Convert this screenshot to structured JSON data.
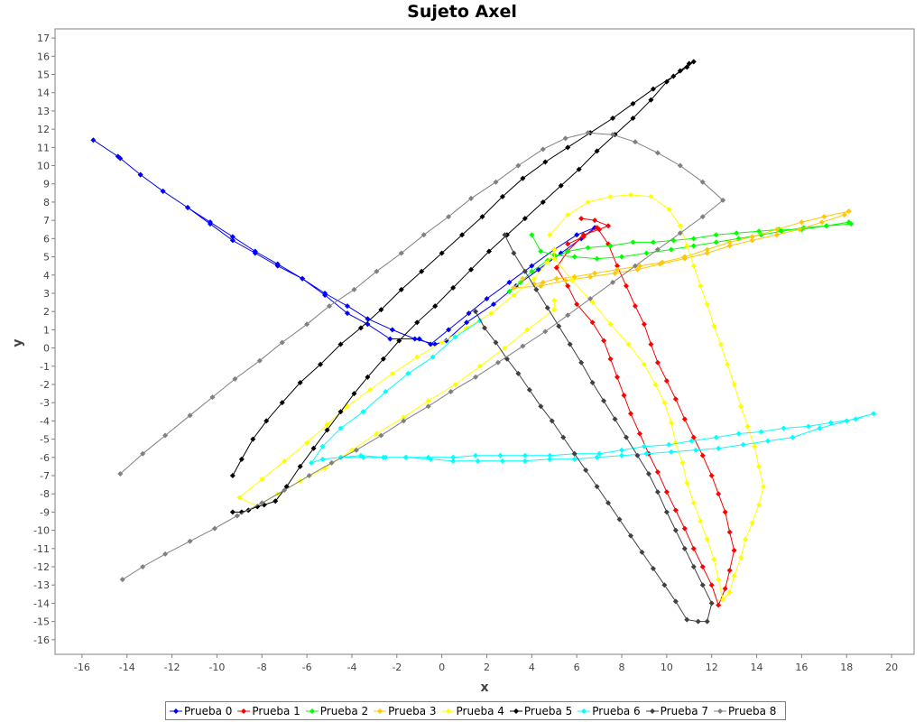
{
  "chart_data": {
    "type": "scatter",
    "title": "Sujeto Axel",
    "xlabel": "x",
    "ylabel": "y",
    "xlim": [
      -17.2,
      21
    ],
    "ylim": [
      -16.8,
      17.5
    ],
    "x_ticks": [
      -16,
      -14,
      -12,
      -10,
      -8,
      -6,
      -4,
      -2,
      0,
      2,
      4,
      6,
      8,
      10,
      12,
      14,
      16,
      18,
      20
    ],
    "y_ticks": [
      -16,
      -15,
      -14,
      -13,
      -12,
      -11,
      -10,
      -9,
      -8,
      -7,
      -6,
      -5,
      -4,
      -3,
      -2,
      -1,
      0,
      1,
      2,
      3,
      4,
      5,
      6,
      7,
      8,
      9,
      10,
      11,
      12,
      13,
      14,
      15,
      16,
      17
    ],
    "grid": false,
    "legend_position": "bottom",
    "series": [
      {
        "name": "Prueba 0",
        "color": "#0000ff",
        "x": [
          -15.5,
          -14.4,
          -13.4,
          -12.4,
          -11.3,
          -10.3,
          -9.3,
          -8.3,
          -7.3,
          -6.2,
          -5.2,
          -4.2,
          -3.3,
          -2.2,
          -1.2,
          -0.3,
          0.2,
          1.1,
          2.3,
          3.3,
          4.3,
          5.3,
          6.2,
          6.8,
          6.0,
          5.0,
          4.0,
          3.0,
          2.0,
          1.2,
          0.3,
          -0.5,
          -1.0,
          -2.3,
          -3.3,
          -4.2,
          -5.2,
          -6.2,
          -7.3,
          -8.3,
          -9.3,
          -10.3,
          -11.3,
          -12.4,
          -13.4,
          -14.3
        ],
        "y": [
          11.4,
          10.5,
          9.5,
          8.6,
          7.7,
          6.8,
          5.9,
          5.2,
          4.5,
          3.8,
          3.0,
          2.3,
          1.6,
          1.0,
          0.5,
          0.2,
          0.4,
          1.4,
          2.4,
          3.4,
          4.3,
          5.2,
          6.0,
          6.6,
          6.2,
          5.4,
          4.5,
          3.6,
          2.7,
          1.9,
          1.0,
          0.2,
          0.5,
          0.5,
          1.3,
          1.9,
          2.9,
          3.8,
          4.6,
          5.3,
          6.1,
          6.9,
          7.7,
          8.6,
          9.5,
          10.4
        ]
      },
      {
        "name": "Prueba 1",
        "color": "#ff0000",
        "x": [
          5.6,
          6.3,
          6.9,
          7.4,
          7.8,
          8.2,
          8.6,
          9.0,
          9.3,
          9.6,
          10.0,
          10.4,
          10.8,
          11.2,
          11.6,
          12.0,
          12.3,
          12.6,
          12.8,
          13.0,
          12.8,
          12.6,
          12.3,
          12.0,
          11.6,
          11.2,
          10.8,
          10.4,
          10.0,
          9.6,
          9.2,
          8.8,
          8.4,
          8.1,
          7.8,
          7.5,
          7.2,
          6.7,
          6.0,
          5.6,
          5.1,
          5.6,
          6.3,
          7.0,
          7.4,
          6.8,
          6.2
        ],
        "y": [
          5.7,
          6.1,
          6.6,
          5.7,
          4.5,
          3.4,
          2.3,
          1.3,
          0.2,
          -0.8,
          -1.8,
          -2.8,
          -3.9,
          -4.9,
          -5.9,
          -7.0,
          -8.0,
          -9.0,
          -10.1,
          -11.1,
          -12.2,
          -13.2,
          -14.1,
          -13.0,
          -12.0,
          -11.0,
          -9.9,
          -8.9,
          -7.9,
          -6.8,
          -5.8,
          -4.7,
          -3.6,
          -2.6,
          -1.6,
          -0.6,
          0.4,
          1.4,
          2.4,
          3.4,
          4.4,
          5.3,
          6.2,
          6.5,
          6.7,
          7.0,
          7.1
        ]
      },
      {
        "name": "Prueba 2",
        "color": "#00ff00",
        "x": [
          3.0,
          3.5,
          4.0,
          4.7,
          5.6,
          6.5,
          7.5,
          8.5,
          9.4,
          10.3,
          11.2,
          12.2,
          13.1,
          14.1,
          15.0,
          16.0,
          17.1,
          18.1,
          18.2,
          17.1,
          16.1,
          15.1,
          14.2,
          13.2,
          12.2,
          11.2,
          10.2,
          9.1,
          8.0,
          6.9,
          5.9,
          5.0,
          4.4,
          4.0
        ],
        "y": [
          3.1,
          3.6,
          4.2,
          4.8,
          5.3,
          5.5,
          5.6,
          5.8,
          5.8,
          5.9,
          6.0,
          6.2,
          6.3,
          6.4,
          6.5,
          6.5,
          6.7,
          6.9,
          6.8,
          6.7,
          6.6,
          6.4,
          6.2,
          6.0,
          5.8,
          5.6,
          5.4,
          5.2,
          5.0,
          4.9,
          5.0,
          5.1,
          5.3,
          6.2
        ]
      },
      {
        "name": "Prueba 3",
        "color": "#ffc800",
        "x": [
          3.6,
          3.2,
          4.4,
          5.5,
          6.6,
          7.7,
          8.7,
          9.7,
          10.8,
          11.8,
          12.8,
          13.8,
          14.9,
          15.9,
          16.9,
          17.9,
          18.1,
          17.0,
          16.0,
          14.9,
          13.8,
          12.8,
          11.8,
          10.8,
          9.8,
          8.8,
          7.8,
          6.8,
          5.9,
          5.1,
          4.5,
          4.1
        ],
        "y": [
          3.8,
          3.3,
          3.4,
          3.7,
          3.9,
          4.1,
          4.3,
          4.6,
          4.9,
          5.2,
          5.6,
          5.9,
          6.2,
          6.5,
          6.9,
          7.3,
          7.5,
          7.2,
          6.9,
          6.5,
          6.1,
          5.8,
          5.4,
          5.0,
          4.7,
          4.5,
          4.3,
          4.1,
          3.9,
          3.8,
          3.6,
          3.5
        ]
      },
      {
        "name": "Prueba 4",
        "color": "#ffff00",
        "x": [
          4.8,
          5.6,
          6.5,
          7.5,
          8.4,
          9.3,
          10.1,
          10.6,
          10.9,
          11.2,
          11.5,
          11.8,
          12.1,
          12.4,
          12.7,
          13.0,
          13.3,
          13.6,
          13.9,
          14.1,
          14.3,
          14.1,
          13.8,
          13.5,
          13.3,
          13.0,
          12.8,
          12.5,
          12.3,
          12.1,
          11.8,
          11.5,
          11.2,
          10.9,
          10.7,
          10.4,
          10.2,
          9.9,
          9.5,
          9.0,
          8.3,
          7.5,
          6.7,
          5.8,
          5.0,
          5.0,
          4.7,
          4.1,
          3.2,
          2.2,
          1.1,
          0.0,
          -1.1,
          -2.2,
          -3.2,
          -4.2,
          -5.1,
          -6.0,
          -7.0,
          -8.0,
          -9.0,
          -8.2,
          -7.3,
          -6.3,
          -5.2,
          -4.0,
          -2.9,
          -1.7,
          -0.6,
          0.6,
          1.7,
          2.8,
          3.8,
          5.0,
          5.0
        ],
        "y": [
          6.2,
          7.3,
          8.0,
          8.3,
          8.4,
          8.3,
          7.6,
          6.7,
          5.6,
          4.5,
          3.4,
          2.4,
          1.2,
          0.2,
          -0.9,
          -2.0,
          -3.2,
          -4.3,
          -5.4,
          -6.5,
          -7.6,
          -8.6,
          -9.6,
          -10.5,
          -11.5,
          -12.5,
          -13.4,
          -13.8,
          -12.7,
          -11.6,
          -10.5,
          -9.5,
          -8.5,
          -7.4,
          -6.3,
          -5.2,
          -4.1,
          -3.0,
          -2.0,
          -0.9,
          0.2,
          1.3,
          2.5,
          3.7,
          4.9,
          5.4,
          4.7,
          3.8,
          2.9,
          1.9,
          1.1,
          0.3,
          -0.5,
          -1.4,
          -2.3,
          -3.2,
          -4.2,
          -5.2,
          -6.2,
          -7.2,
          -8.2,
          -8.7,
          -8.0,
          -7.3,
          -6.6,
          -5.6,
          -4.7,
          -3.8,
          -2.9,
          -2.0,
          -1.0,
          0.0,
          1.0,
          2.1,
          2.6
        ]
      },
      {
        "name": "Prueba 5",
        "color": "#000000",
        "x": [
          -9.3,
          -8.9,
          -8.6,
          -8.2,
          -7.9,
          -7.4,
          -6.9,
          -6.3,
          -5.7,
          -5.1,
          -4.5,
          -3.9,
          -3.3,
          -2.6,
          -1.9,
          -1.1,
          -0.3,
          0.5,
          1.3,
          2.1,
          2.9,
          3.7,
          4.5,
          5.3,
          6.1,
          6.9,
          7.7,
          8.5,
          9.3,
          10.0,
          10.6,
          11.0,
          11.2,
          10.9,
          10.3,
          9.4,
          8.5,
          7.6,
          6.6,
          5.6,
          4.6,
          3.6,
          2.7,
          1.8,
          0.9,
          0.0,
          -0.9,
          -1.8,
          -2.7,
          -3.6,
          -4.5,
          -5.4,
          -6.3,
          -7.1,
          -7.8,
          -8.4,
          -8.9,
          -9.3
        ],
        "y": [
          -9.0,
          -9.0,
          -8.9,
          -8.7,
          -8.6,
          -8.4,
          -7.6,
          -6.5,
          -5.5,
          -4.5,
          -3.5,
          -2.5,
          -1.6,
          -0.6,
          0.4,
          1.4,
          2.3,
          3.3,
          4.3,
          5.3,
          6.2,
          7.1,
          8.0,
          8.9,
          9.8,
          10.8,
          11.7,
          12.6,
          13.6,
          14.6,
          15.2,
          15.6,
          15.7,
          15.4,
          14.9,
          14.2,
          13.4,
          12.6,
          11.8,
          11.0,
          10.2,
          9.3,
          8.3,
          7.2,
          6.2,
          5.2,
          4.2,
          3.2,
          2.1,
          1.1,
          0.2,
          -0.9,
          -1.9,
          -3.0,
          -4.0,
          -5.0,
          -6.1,
          -7.0
        ]
      },
      {
        "name": "Prueba 6",
        "color": "#00ffff",
        "x": [
          -4.5,
          -3.5,
          -2.5,
          -1.6,
          -0.6,
          0.5,
          1.5,
          2.6,
          3.7,
          4.8,
          5.9,
          7.0,
          8.0,
          9.0,
          10.1,
          11.1,
          12.2,
          13.2,
          14.2,
          15.2,
          16.3,
          17.3,
          18.4,
          19.2,
          18.0,
          16.8,
          15.6,
          14.5,
          13.4,
          12.3,
          11.3,
          10.2,
          9.1,
          8.0,
          6.9,
          5.9,
          4.8,
          3.7,
          2.7,
          1.6,
          0.5,
          -0.5,
          -1.6,
          -2.6,
          -3.6,
          -4.5,
          -5.3,
          -5.8,
          -5.3,
          -4.5,
          -3.5,
          -2.5,
          -1.5,
          -0.4,
          0.6,
          1.7
        ],
        "y": [
          -6.0,
          -6.0,
          -6.0,
          -6.0,
          -6.0,
          -6.0,
          -5.9,
          -5.9,
          -5.9,
          -5.9,
          -5.8,
          -5.8,
          -5.6,
          -5.4,
          -5.3,
          -5.1,
          -4.9,
          -4.7,
          -4.6,
          -4.4,
          -4.3,
          -4.1,
          -3.9,
          -3.6,
          -4.0,
          -4.4,
          -4.9,
          -5.1,
          -5.3,
          -5.5,
          -5.6,
          -5.7,
          -5.8,
          -5.9,
          -6.0,
          -6.1,
          -6.1,
          -6.2,
          -6.2,
          -6.2,
          -6.2,
          -6.1,
          -6.0,
          -6.0,
          -5.9,
          -6.0,
          -6.1,
          -6.3,
          -5.4,
          -4.4,
          -3.5,
          -2.4,
          -1.4,
          -0.5,
          0.6,
          1.5
        ]
      },
      {
        "name": "Prueba 7",
        "color": "#404040",
        "x": [
          1.5,
          1.9,
          2.4,
          2.9,
          3.4,
          3.9,
          4.4,
          4.9,
          5.4,
          5.9,
          6.4,
          6.9,
          7.4,
          7.9,
          8.4,
          8.9,
          9.4,
          9.9,
          10.4,
          10.9,
          11.4,
          11.8,
          12.0,
          11.6,
          11.2,
          10.8,
          10.4,
          10.0,
          9.6,
          9.2,
          8.7,
          8.2,
          7.7,
          7.2,
          6.7,
          6.2,
          5.7,
          5.2,
          4.7,
          4.2,
          3.7,
          3.2,
          2.8
        ],
        "y": [
          2.0,
          1.1,
          0.3,
          -0.6,
          -1.4,
          -2.3,
          -3.2,
          -4.0,
          -4.9,
          -5.8,
          -6.7,
          -7.6,
          -8.5,
          -9.4,
          -10.3,
          -11.2,
          -12.1,
          -13.0,
          -13.9,
          -14.9,
          -15.0,
          -15.0,
          -14.0,
          -13.0,
          -12.0,
          -11.0,
          -10.0,
          -9.0,
          -7.9,
          -6.9,
          -5.9,
          -4.9,
          -3.9,
          -2.9,
          -1.9,
          -0.8,
          0.2,
          1.2,
          2.2,
          3.2,
          4.2,
          5.2,
          6.2
        ]
      },
      {
        "name": "Prueba 8",
        "color": "#808080",
        "x": [
          -14.2,
          -13.3,
          -12.3,
          -11.2,
          -10.1,
          -9.1,
          -8.0,
          -7.0,
          -5.9,
          -4.9,
          -3.8,
          -2.7,
          -1.7,
          -0.6,
          0.4,
          1.5,
          2.5,
          3.6,
          4.6,
          5.6,
          6.6,
          7.6,
          8.6,
          9.6,
          10.6,
          11.6,
          12.5,
          11.6,
          10.6,
          9.6,
          8.6,
          7.6,
          6.5,
          5.5,
          4.5,
          3.4,
          2.4,
          1.3,
          0.3,
          -0.8,
          -1.8,
          -2.9,
          -3.9,
          -5.0,
          -6.0,
          -7.1,
          -8.1,
          -9.2,
          -10.2,
          -11.2,
          -12.3,
          -13.3,
          -14.3
        ],
        "y": [
          -12.7,
          -12.0,
          -11.3,
          -10.6,
          -9.9,
          -9.2,
          -8.5,
          -7.8,
          -7.0,
          -6.3,
          -5.6,
          -4.8,
          -4.0,
          -3.2,
          -2.4,
          -1.6,
          -0.8,
          0.1,
          0.9,
          1.8,
          2.7,
          3.6,
          4.5,
          5.4,
          6.3,
          7.2,
          8.1,
          9.1,
          10.0,
          10.7,
          11.3,
          11.7,
          11.8,
          11.5,
          10.9,
          10.0,
          9.1,
          8.2,
          7.2,
          6.2,
          5.2,
          4.2,
          3.2,
          2.3,
          1.3,
          0.3,
          -0.7,
          -1.7,
          -2.7,
          -3.7,
          -4.8,
          -5.8,
          -6.9
        ]
      }
    ]
  }
}
